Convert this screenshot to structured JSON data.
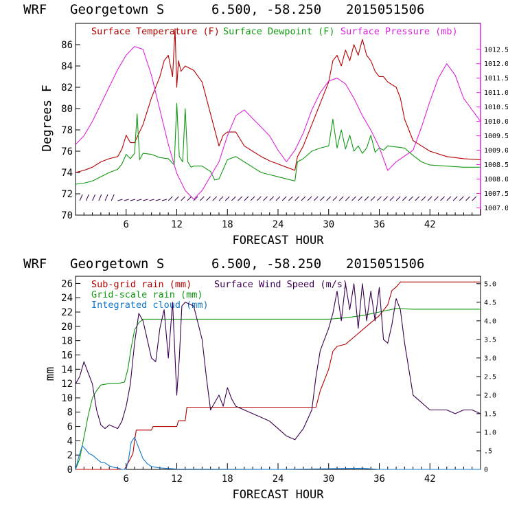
{
  "header_top": {
    "model": "WRF",
    "station": "Georgetown S",
    "coords": "6.500, -58.250",
    "run": "2015051506"
  },
  "header_bottom": {
    "model": "WRF",
    "station": "Georgetown S",
    "coords": "6.500, -58.250",
    "run": "2015051506"
  },
  "colors": {
    "temp": "#b40000",
    "dew": "#119911",
    "pressure": "#dd22dd",
    "wind": "#3a0050",
    "cloud": "#1177cc",
    "frame": "#000000"
  },
  "chart_data": [
    {
      "type": "line",
      "title": "WRF Georgetown S 6.500, -58.250 2015051506",
      "xlabel": "FORECAST HOUR",
      "ylabel": "Degrees F",
      "xlim": [
        0,
        48
      ],
      "ylim": [
        70,
        88
      ],
      "y2lim": [
        1006.75,
        1013.4
      ],
      "x_ticks": [
        6,
        12,
        18,
        24,
        30,
        36,
        42
      ],
      "y_ticks": [
        70,
        72,
        74,
        76,
        78,
        80,
        82,
        84,
        86
      ],
      "y2_ticks": [
        {
          "v": 1007.0,
          "l": "1007.0"
        },
        {
          "v": 1007.5,
          "l": "1007.5"
        },
        {
          "v": 1008.0,
          "l": "1008.0"
        },
        {
          "v": 1008.5,
          "l": "1008.5"
        },
        {
          "v": 1009.0,
          "l": "1009.0"
        },
        {
          "v": 1009.5,
          "l": "1009.5"
        },
        {
          "v": 1010.0,
          "l": "1010.0"
        },
        {
          "v": 1010.5,
          "l": "1010.5"
        },
        {
          "v": 1011.0,
          "l": "1011.0"
        },
        {
          "v": 1011.5,
          "l": "1011.5"
        },
        {
          "v": 1012.0,
          "l": "1012.0"
        },
        {
          "v": 1012.5,
          "l": "1012.5"
        }
      ],
      "legend": [
        "Surface Temperature (F)",
        "Surface Dewpoint (F)",
        "Surface Pressure (mb)"
      ],
      "series": [
        {
          "name": "Surface Temperature (F)",
          "axis": "left",
          "x": [
            0,
            1,
            2,
            3,
            4,
            5,
            5.5,
            6,
            6.5,
            7,
            8,
            9,
            10,
            10.5,
            11,
            11.5,
            11.8,
            12,
            12.2,
            12.5,
            13,
            13.5,
            14,
            15,
            16,
            17,
            17.5,
            18,
            19,
            20,
            21,
            22,
            23,
            24,
            25,
            26,
            26.3,
            27,
            28,
            29,
            30,
            30.5,
            31,
            31.5,
            32,
            32.5,
            33,
            33.5,
            34,
            34.5,
            35,
            35.5,
            36,
            36.5,
            37,
            38,
            38.5,
            39,
            40,
            41,
            42,
            44,
            46,
            48
          ],
          "y": [
            74.0,
            74.2,
            74.5,
            75.0,
            75.3,
            75.5,
            76.2,
            77.5,
            76.8,
            76.8,
            78.5,
            81.0,
            83.0,
            84.5,
            85.0,
            83.0,
            87.5,
            82.0,
            84.5,
            83.5,
            84.0,
            83.8,
            83.6,
            82.5,
            79.5,
            76.5,
            77.5,
            77.8,
            77.8,
            76.5,
            76.0,
            75.5,
            75.1,
            74.8,
            74.5,
            74.2,
            75.5,
            76.5,
            78.5,
            80.5,
            82.5,
            84.5,
            85.0,
            84.0,
            85.5,
            84.5,
            86.0,
            85.0,
            86.5,
            85.0,
            84.5,
            83.5,
            83.0,
            83.0,
            82.5,
            82.0,
            81.0,
            79.0,
            77.0,
            76.5,
            76.0,
            75.5,
            75.3,
            75.2
          ]
        },
        {
          "name": "Surface Dewpoint (F)",
          "axis": "left",
          "x": [
            0,
            1,
            2,
            3,
            4,
            5,
            5.5,
            6,
            6.5,
            7,
            7.3,
            7.6,
            8,
            9,
            10,
            11,
            11.7,
            12,
            12.3,
            12.7,
            13,
            13.3,
            13.7,
            14,
            15,
            16,
            16.5,
            17,
            18,
            19,
            20,
            21,
            22,
            23,
            24,
            25,
            26,
            26.3,
            27,
            28,
            29,
            30,
            30.5,
            31,
            31.5,
            32,
            32.5,
            33,
            33.5,
            34,
            34.5,
            35,
            35.5,
            36,
            36.5,
            37,
            38,
            39,
            40,
            41,
            42,
            44,
            46,
            48
          ],
          "y": [
            72.9,
            73.0,
            73.2,
            73.6,
            74.0,
            74.3,
            74.8,
            75.7,
            75.3,
            75.8,
            79.5,
            75.2,
            75.8,
            75.7,
            75.4,
            75.3,
            74.7,
            80.5,
            75.5,
            75.0,
            80.0,
            75.0,
            74.5,
            74.6,
            74.6,
            74.1,
            73.3,
            73.4,
            75.2,
            75.5,
            75.0,
            74.5,
            74.0,
            73.8,
            73.6,
            73.4,
            73.2,
            75.0,
            75.3,
            76.0,
            76.3,
            76.5,
            79.0,
            76.3,
            78.0,
            76.2,
            77.5,
            76.0,
            76.5,
            75.8,
            76.3,
            77.5,
            75.9,
            76.3,
            76.1,
            76.5,
            76.4,
            76.3,
            75.6,
            75.0,
            74.7,
            74.6,
            74.5,
            74.5
          ]
        },
        {
          "name": "Surface Pressure (mb)",
          "axis": "right",
          "x": [
            0,
            1,
            2,
            3,
            4,
            5,
            6,
            7,
            8,
            9,
            10,
            11,
            12,
            13,
            14,
            15,
            16,
            17,
            18,
            19,
            20,
            21,
            22,
            23,
            24,
            25,
            26,
            27,
            28,
            29,
            30,
            31,
            32,
            33,
            34,
            35,
            36,
            37,
            38,
            39,
            40,
            41,
            42,
            43,
            44,
            45,
            46,
            47,
            48
          ],
          "y": [
            1009.2,
            1009.5,
            1010.0,
            1010.6,
            1011.2,
            1011.8,
            1012.3,
            1012.6,
            1012.5,
            1011.6,
            1010.4,
            1009.2,
            1008.2,
            1007.6,
            1007.3,
            1007.6,
            1008.1,
            1008.6,
            1009.5,
            1010.2,
            1010.4,
            1010.1,
            1009.8,
            1009.5,
            1009.0,
            1008.6,
            1009.0,
            1009.6,
            1010.4,
            1011.0,
            1011.4,
            1011.5,
            1011.3,
            1010.8,
            1010.2,
            1009.7,
            1009.1,
            1008.3,
            1008.6,
            1008.8,
            1009.0,
            1009.8,
            1010.7,
            1011.5,
            1012.0,
            1011.6,
            1010.8,
            1010.4,
            1010.0
          ]
        }
      ]
    },
    {
      "type": "line",
      "title": "WRF Georgetown S 6.500, -58.250 2015051506",
      "xlabel": "FORECAST HOUR",
      "ylabel": "mm",
      "xlim": [
        0,
        48
      ],
      "ylim": [
        0,
        27
      ],
      "y2lim": [
        0,
        5.2
      ],
      "x_ticks": [
        6,
        12,
        18,
        24,
        30,
        36,
        42
      ],
      "y_ticks": [
        0,
        2,
        4,
        6,
        8,
        10,
        12,
        14,
        16,
        18,
        20,
        22,
        24,
        26
      ],
      "y2_ticks": [
        {
          "v": 0,
          "l": "0"
        },
        {
          "v": 0.5,
          "l": ".5"
        },
        {
          "v": 1.0,
          "l": "1.0"
        },
        {
          "v": 1.5,
          "l": "1.5"
        },
        {
          "v": 2.0,
          "l": "2.0"
        },
        {
          "v": 2.5,
          "l": "2.5"
        },
        {
          "v": 3.0,
          "l": "3.0"
        },
        {
          "v": 3.5,
          "l": "3.5"
        },
        {
          "v": 4.0,
          "l": "4.0"
        },
        {
          "v": 4.5,
          "l": "4.5"
        },
        {
          "v": 5.0,
          "l": "5.0"
        }
      ],
      "legend": [
        "Sub-grid rain (mm)",
        "Surface Wind Speed (m/s)",
        "Grid-scale rain (mm)",
        "Integrated cloud (mm)"
      ],
      "series": [
        {
          "name": "Sub-grid rain (mm)",
          "axis": "left",
          "x": [
            0,
            5.8,
            6.0,
            6.5,
            6.8,
            7.0,
            7.2,
            9.0,
            9.2,
            12.0,
            12.2,
            13.0,
            13.2,
            28.5,
            29.0,
            30.0,
            30.5,
            31.0,
            32.0,
            33.0,
            34.0,
            35.0,
            36.0,
            37.0,
            37.5,
            38.0,
            38.5,
            48
          ],
          "y": [
            0,
            0,
            0.4,
            1.5,
            2.2,
            4.0,
            5.5,
            5.5,
            6.0,
            6.0,
            6.8,
            6.8,
            8.7,
            8.7,
            11.0,
            14.0,
            16.5,
            17.2,
            17.5,
            18.5,
            19.5,
            20.5,
            21.5,
            23.0,
            25.0,
            25.5,
            26.2,
            26.2
          ]
        },
        {
          "name": "Grid-scale rain (mm)",
          "axis": "left",
          "x": [
            0,
            0.5,
            1,
            1.5,
            2,
            2.5,
            3,
            4,
            5,
            5.8,
            6.2,
            6.6,
            7,
            7.5,
            8,
            9,
            10,
            12,
            20,
            28,
            30,
            32,
            34,
            36,
            38,
            40,
            48
          ],
          "y": [
            0,
            1.5,
            4.5,
            7.5,
            10,
            11.0,
            11.8,
            12.0,
            12.0,
            12.2,
            14.0,
            17.0,
            19.5,
            20.5,
            21.0,
            21.0,
            21.0,
            21.0,
            21.0,
            21.0,
            21.0,
            21.2,
            21.5,
            22.0,
            22.5,
            22.4,
            22.4
          ]
        },
        {
          "name": "Integrated cloud (mm)",
          "axis": "left",
          "x": [
            0,
            0.4,
            0.8,
            1.2,
            1.6,
            2,
            2.5,
            3,
            3.5,
            4,
            4.5,
            5,
            5.5,
            6,
            6.3,
            6.6,
            7,
            7.5,
            8,
            8.5,
            9,
            10,
            12,
            24,
            34,
            36,
            40,
            48
          ],
          "y": [
            0,
            1.8,
            3.3,
            2.8,
            2.2,
            2.0,
            1.5,
            1.0,
            0.9,
            0.5,
            0.3,
            0.2,
            0,
            0,
            1.5,
            3.8,
            4.5,
            3.0,
            1.5,
            0.8,
            0.4,
            0.2,
            0.05,
            0,
            0.15,
            0,
            0,
            0
          ]
        },
        {
          "name": "Surface Wind Speed (m/s)",
          "axis": "right",
          "x": [
            0,
            0.5,
            1,
            1.5,
            2,
            2.5,
            3,
            3.5,
            4,
            5,
            5.5,
            6,
            6.5,
            7,
            7.5,
            8,
            8.5,
            9,
            9.5,
            10,
            10.5,
            11,
            11.5,
            12,
            12.3,
            12.6,
            13,
            14,
            15,
            15.5,
            16,
            17,
            17.5,
            18,
            18.5,
            19,
            20,
            21,
            22,
            23,
            24,
            25,
            26,
            27,
            28,
            28.5,
            29,
            29.5,
            30,
            30.5,
            31,
            31.5,
            32,
            32.5,
            33,
            33.5,
            34,
            34.5,
            35,
            35.5,
            36,
            36.5,
            37,
            37.5,
            38,
            38.5,
            39,
            40,
            41,
            42,
            43,
            44,
            45,
            46,
            47,
            48
          ],
          "y": [
            2.3,
            2.5,
            2.9,
            2.6,
            2.3,
            1.6,
            1.2,
            1.1,
            1.2,
            1.1,
            1.3,
            1.7,
            2.3,
            3.4,
            4.2,
            4.0,
            3.5,
            3.0,
            2.9,
            3.8,
            4.3,
            3.0,
            4.5,
            2.0,
            3.0,
            4.4,
            4.5,
            4.4,
            3.5,
            2.5,
            1.6,
            2.0,
            1.7,
            2.2,
            1.9,
            1.7,
            1.6,
            1.5,
            1.4,
            1.3,
            1.1,
            0.9,
            0.8,
            1.1,
            1.6,
            2.5,
            3.2,
            3.5,
            3.8,
            4.2,
            4.8,
            4.0,
            5.0,
            4.3,
            5.0,
            3.8,
            5.0,
            4.0,
            4.8,
            4.0,
            4.9,
            3.5,
            3.4,
            3.9,
            4.6,
            4.3,
            3.4,
            2.0,
            1.8,
            1.6,
            1.6,
            1.6,
            1.5,
            1.6,
            1.6,
            1.5
          ]
        }
      ]
    }
  ]
}
